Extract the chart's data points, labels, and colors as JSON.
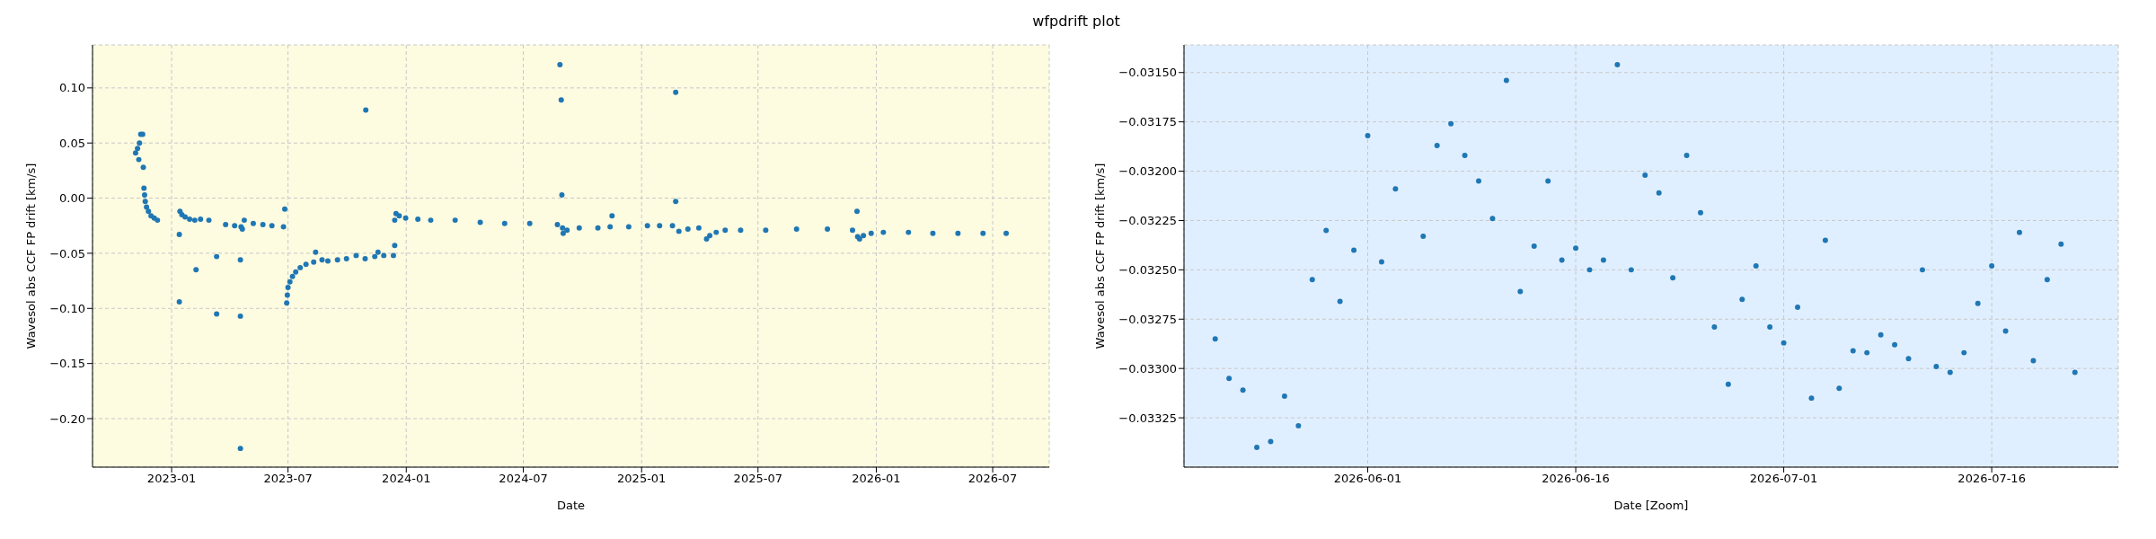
{
  "chart_data": [
    {
      "type": "scatter",
      "title": "wfpdrift plot",
      "xlabel": "Date",
      "ylabel": "Wavesol abs CCF FP drift [km/s]",
      "marker": "circle",
      "grid": true,
      "xlim": [
        "2022-08-31",
        "2026-09-27"
      ],
      "xticks": [
        "2023-01",
        "2023-07",
        "2024-01",
        "2024-07",
        "2025-01",
        "2025-07",
        "2026-01",
        "2026-07"
      ],
      "ylim": [
        -0.244,
        0.139
      ],
      "yticks": [
        {
          "value": -0.2,
          "label": "−0.20"
        },
        {
          "value": -0.15,
          "label": "−0.15"
        },
        {
          "value": -0.1,
          "label": "−0.10"
        },
        {
          "value": -0.05,
          "label": "−0.05"
        },
        {
          "value": 0,
          "label": "0.00"
        },
        {
          "value": 0.05,
          "label": "0.05"
        },
        {
          "value": 0.1,
          "label": "0.10"
        }
      ],
      "series": [
        {
          "color": "#1f77b4",
          "x": [
            "2022-11-06",
            "2022-11-09",
            "2022-11-11",
            "2022-11-12",
            "2022-11-14",
            "2022-11-17",
            "2022-11-18",
            "2022-11-19",
            "2022-11-20",
            "2022-11-21",
            "2022-11-23",
            "2022-11-26",
            "2022-11-30",
            "2022-12-05",
            "2022-12-10",
            "2023-01-13",
            "2023-01-13",
            "2023-01-14",
            "2023-01-17",
            "2023-01-22",
            "2023-01-29",
            "2023-02-06",
            "2023-02-08",
            "2023-02-15",
            "2023-02-28",
            "2023-03-12",
            "2023-03-12",
            "2023-03-26",
            "2023-04-09",
            "2023-04-18",
            "2023-04-18",
            "2023-04-18",
            "2023-04-19",
            "2023-04-21",
            "2023-04-24",
            "2023-05-08",
            "2023-05-23",
            "2023-06-06",
            "2023-06-24",
            "2023-06-26",
            "2023-06-29",
            "2023-06-30",
            "2023-07-01",
            "2023-07-04",
            "2023-07-08",
            "2023-07-13",
            "2023-07-20",
            "2023-07-29",
            "2023-08-10",
            "2023-08-13",
            "2023-08-23",
            "2023-09-01",
            "2023-09-16",
            "2023-09-30",
            "2023-10-15",
            "2023-10-29",
            "2023-10-30",
            "2023-11-13",
            "2023-11-18",
            "2023-11-27",
            "2023-12-12",
            "2023-12-14",
            "2023-12-14",
            "2023-12-16",
            "2023-12-21",
            "2023-12-31",
            "2024-01-19",
            "2024-02-08",
            "2024-03-17",
            "2024-04-25",
            "2024-06-02",
            "2024-07-11",
            "2024-08-23",
            "2024-08-27",
            "2024-08-29",
            "2024-08-30",
            "2024-08-31",
            "2024-09-01",
            "2024-09-07",
            "2024-09-26",
            "2024-10-25",
            "2024-11-13",
            "2024-11-16",
            "2024-12-12",
            "2025-01-10",
            "2025-01-29",
            "2025-02-18",
            "2025-02-23",
            "2025-02-23",
            "2025-02-28",
            "2025-03-14",
            "2025-03-31",
            "2025-04-12",
            "2025-04-17",
            "2025-04-27",
            "2025-05-11",
            "2025-06-04",
            "2025-07-13",
            "2025-08-30",
            "2025-10-17",
            "2025-11-25",
            "2025-12-02",
            "2025-12-03",
            "2025-12-06",
            "2025-12-12",
            "2025-12-24",
            "2026-01-12",
            "2026-02-20",
            "2026-03-30",
            "2026-05-08",
            "2026-06-16",
            "2026-07-22"
          ],
          "values": [
            0.041,
            0.045,
            0.035,
            0.05,
            0.058,
            0.058,
            0.028,
            0.009,
            0.003,
            -0.003,
            -0.008,
            -0.012,
            -0.016,
            -0.018,
            -0.02,
            -0.033,
            -0.094,
            -0.012,
            -0.015,
            -0.017,
            -0.019,
            -0.02,
            -0.065,
            -0.019,
            -0.02,
            -0.053,
            -0.105,
            -0.024,
            -0.025,
            -0.056,
            -0.107,
            -0.227,
            -0.026,
            -0.028,
            -0.02,
            -0.023,
            -0.024,
            -0.025,
            -0.026,
            -0.01,
            -0.095,
            -0.088,
            -0.081,
            -0.076,
            -0.071,
            -0.067,
            -0.063,
            -0.06,
            -0.058,
            -0.049,
            -0.056,
            -0.057,
            -0.056,
            -0.055,
            -0.052,
            -0.055,
            0.08,
            -0.053,
            -0.049,
            -0.052,
            -0.052,
            -0.043,
            -0.02,
            -0.014,
            -0.016,
            -0.018,
            -0.019,
            -0.02,
            -0.02,
            -0.022,
            -0.023,
            -0.023,
            -0.024,
            0.121,
            0.089,
            0.003,
            -0.027,
            -0.032,
            -0.029,
            -0.027,
            -0.027,
            -0.026,
            -0.016,
            -0.026,
            -0.025,
            -0.025,
            -0.025,
            0.096,
            -0.003,
            -0.03,
            -0.028,
            -0.027,
            -0.037,
            -0.034,
            -0.031,
            -0.029,
            -0.029,
            -0.029,
            -0.028,
            -0.028,
            -0.029,
            -0.012,
            -0.035,
            -0.037,
            -0.034,
            -0.032,
            -0.031,
            -0.031,
            -0.032,
            -0.032,
            -0.032,
            -0.032
          ]
        }
      ]
    },
    {
      "type": "scatter",
      "xlabel": "Date [Zoom]",
      "ylabel": "Wavesol abs CCF FP drift [km/s]",
      "marker": "circle",
      "grid": true,
      "xlim": [
        "2026-05-18T18:00",
        "2026-07-25T03:00"
      ],
      "xticks": [
        "2026-06-01",
        "2026-06-16",
        "2026-07-01",
        "2026-07-16"
      ],
      "ylim": [
        -0.0335,
        -0.03136
      ],
      "yticks": [
        {
          "value": -0.03325,
          "label": "−0.03325"
        },
        {
          "value": -0.033,
          "label": "−0.03300"
        },
        {
          "value": -0.03275,
          "label": "−0.03275"
        },
        {
          "value": -0.0325,
          "label": "−0.03250"
        },
        {
          "value": -0.03225,
          "label": "−0.03225"
        },
        {
          "value": -0.032,
          "label": "−0.03200"
        },
        {
          "value": -0.03175,
          "label": "−0.03175"
        },
        {
          "value": -0.0315,
          "label": "−0.03150"
        }
      ],
      "series": [
        {
          "color": "#1f77b4",
          "x": [
            "2026-05-21",
            "2026-05-22",
            "2026-05-23",
            "2026-05-24",
            "2026-05-25",
            "2026-05-26",
            "2026-05-27",
            "2026-05-28",
            "2026-05-29",
            "2026-05-30",
            "2026-05-31",
            "2026-06-01",
            "2026-06-02",
            "2026-06-03",
            "2026-06-05",
            "2026-06-06",
            "2026-06-07",
            "2026-06-08",
            "2026-06-09",
            "2026-06-10",
            "2026-06-11",
            "2026-06-12",
            "2026-06-13",
            "2026-06-14",
            "2026-06-15",
            "2026-06-16",
            "2026-06-17",
            "2026-06-18",
            "2026-06-19",
            "2026-06-20",
            "2026-06-21",
            "2026-06-22",
            "2026-06-23",
            "2026-06-24",
            "2026-06-25",
            "2026-06-26",
            "2026-06-27",
            "2026-06-28",
            "2026-06-29",
            "2026-06-30",
            "2026-07-01",
            "2026-07-02",
            "2026-07-03",
            "2026-07-04",
            "2026-07-05",
            "2026-07-06",
            "2026-07-07",
            "2026-07-08",
            "2026-07-09",
            "2026-07-10",
            "2026-07-11",
            "2026-07-12",
            "2026-07-13",
            "2026-07-14",
            "2026-07-15",
            "2026-07-16",
            "2026-07-17",
            "2026-07-18",
            "2026-07-19",
            "2026-07-20",
            "2026-07-21",
            "2026-07-22"
          ],
          "values": [
            -0.03285,
            -0.03305,
            -0.03311,
            -0.0334,
            -0.03337,
            -0.03314,
            -0.03329,
            -0.03255,
            -0.0323,
            -0.03266,
            -0.0324,
            -0.03182,
            -0.03246,
            -0.03209,
            -0.03233,
            -0.03187,
            -0.03176,
            -0.03192,
            -0.03205,
            -0.03224,
            -0.03154,
            -0.03261,
            -0.03238,
            -0.03205,
            -0.03245,
            -0.03239,
            -0.0325,
            -0.03245,
            -0.03146,
            -0.0325,
            -0.03202,
            -0.03211,
            -0.03254,
            -0.03192,
            -0.03221,
            -0.03279,
            -0.03308,
            -0.03265,
            -0.03248,
            -0.03279,
            -0.03287,
            -0.03269,
            -0.03315,
            -0.03235,
            -0.0331,
            -0.03291,
            -0.03292,
            -0.03283,
            -0.03288,
            -0.03295,
            -0.0325,
            -0.03299,
            -0.03302,
            -0.03292,
            -0.03267,
            -0.03248,
            -0.03281,
            -0.03231,
            -0.03296,
            -0.03255,
            -0.03237,
            -0.03302
          ]
        }
      ]
    }
  ]
}
